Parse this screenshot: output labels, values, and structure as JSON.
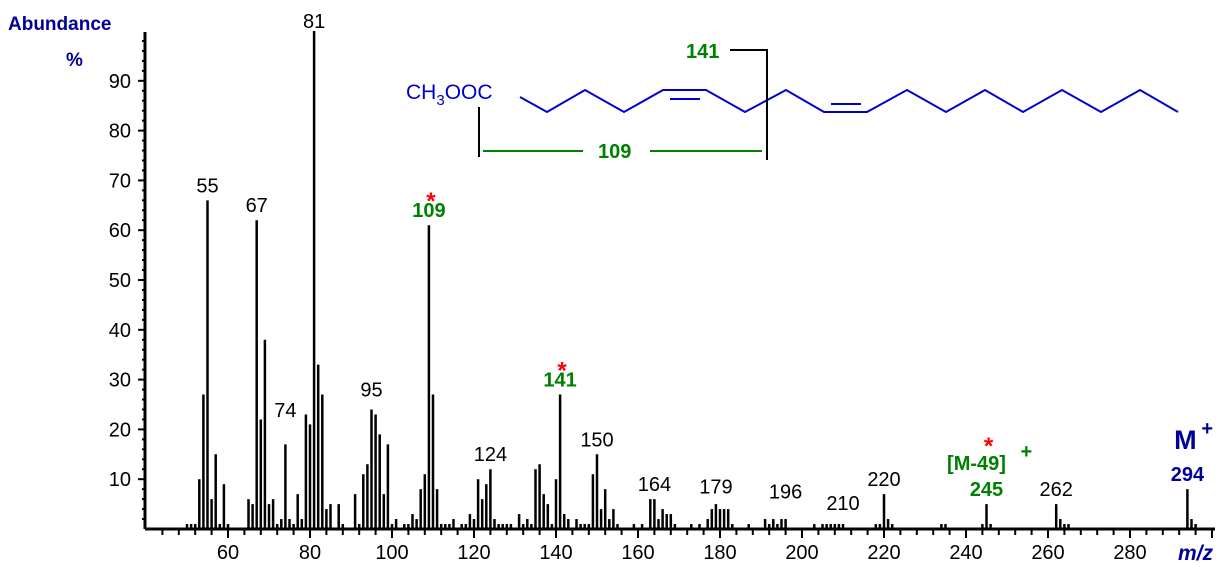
{
  "chart_data": {
    "type": "bar",
    "title": "",
    "xlabel": "m/z",
    "ylabel": "Abundance %",
    "xlim": [
      40,
      300
    ],
    "ylim": [
      0,
      100
    ],
    "x_ticks": [
      60,
      80,
      100,
      120,
      140,
      160,
      180,
      200,
      220,
      240,
      260,
      280
    ],
    "y_ticks": [
      10,
      20,
      30,
      40,
      50,
      60,
      70,
      80,
      90
    ],
    "grid": false,
    "peaks": [
      [
        50,
        1
      ],
      [
        51,
        1
      ],
      [
        52,
        1
      ],
      [
        53,
        10
      ],
      [
        54,
        27
      ],
      [
        55,
        66
      ],
      [
        56,
        6
      ],
      [
        57,
        15
      ],
      [
        58,
        1
      ],
      [
        59,
        9
      ],
      [
        60,
        1
      ],
      [
        65,
        6
      ],
      [
        66,
        5
      ],
      [
        67,
        62
      ],
      [
        68,
        22
      ],
      [
        69,
        38
      ],
      [
        70,
        5
      ],
      [
        71,
        6
      ],
      [
        72,
        1
      ],
      [
        73,
        2
      ],
      [
        74,
        17
      ],
      [
        75,
        2
      ],
      [
        76,
        1
      ],
      [
        77,
        7
      ],
      [
        78,
        2
      ],
      [
        79,
        23
      ],
      [
        80,
        21
      ],
      [
        81,
        100
      ],
      [
        82,
        33
      ],
      [
        83,
        27
      ],
      [
        84,
        4
      ],
      [
        85,
        5
      ],
      [
        87,
        5
      ],
      [
        88,
        1
      ],
      [
        91,
        7
      ],
      [
        92,
        1
      ],
      [
        93,
        11
      ],
      [
        94,
        13
      ],
      [
        95,
        24
      ],
      [
        96,
        23
      ],
      [
        97,
        19
      ],
      [
        98,
        7
      ],
      [
        99,
        17
      ],
      [
        100,
        1
      ],
      [
        101,
        2
      ],
      [
        103,
        1
      ],
      [
        104,
        1
      ],
      [
        105,
        3
      ],
      [
        106,
        2
      ],
      [
        107,
        8
      ],
      [
        108,
        11
      ],
      [
        109,
        61
      ],
      [
        110,
        27
      ],
      [
        111,
        8
      ],
      [
        112,
        1
      ],
      [
        113,
        1
      ],
      [
        114,
        1
      ],
      [
        115,
        2
      ],
      [
        117,
        1
      ],
      [
        118,
        1
      ],
      [
        119,
        3
      ],
      [
        120,
        2
      ],
      [
        121,
        10
      ],
      [
        122,
        6
      ],
      [
        123,
        9
      ],
      [
        124,
        12
      ],
      [
        125,
        2
      ],
      [
        126,
        1
      ],
      [
        127,
        1
      ],
      [
        128,
        1
      ],
      [
        129,
        1
      ],
      [
        131,
        3
      ],
      [
        132,
        1
      ],
      [
        133,
        2
      ],
      [
        134,
        1
      ],
      [
        135,
        12
      ],
      [
        136,
        13
      ],
      [
        137,
        7
      ],
      [
        138,
        5
      ],
      [
        139,
        1
      ],
      [
        140,
        10
      ],
      [
        141,
        27
      ],
      [
        142,
        3
      ],
      [
        143,
        2
      ],
      [
        145,
        2
      ],
      [
        146,
        1
      ],
      [
        147,
        1
      ],
      [
        148,
        1
      ],
      [
        149,
        11
      ],
      [
        150,
        15
      ],
      [
        151,
        4
      ],
      [
        152,
        8
      ],
      [
        153,
        2
      ],
      [
        154,
        4
      ],
      [
        155,
        1
      ],
      [
        159,
        1
      ],
      [
        161,
        1
      ],
      [
        163,
        6
      ],
      [
        164,
        6
      ],
      [
        165,
        2
      ],
      [
        166,
        4
      ],
      [
        167,
        3
      ],
      [
        168,
        3
      ],
      [
        169,
        1
      ],
      [
        173,
        1
      ],
      [
        175,
        1
      ],
      [
        177,
        2
      ],
      [
        178,
        4
      ],
      [
        179,
        5
      ],
      [
        180,
        4
      ],
      [
        181,
        4
      ],
      [
        182,
        4
      ],
      [
        183,
        1
      ],
      [
        187,
        1
      ],
      [
        191,
        2
      ],
      [
        192,
        1
      ],
      [
        193,
        2
      ],
      [
        194,
        1
      ],
      [
        195,
        2
      ],
      [
        196,
        2
      ],
      [
        203,
        1
      ],
      [
        205,
        1
      ],
      [
        206,
        1
      ],
      [
        207,
        1
      ],
      [
        208,
        1
      ],
      [
        209,
        1
      ],
      [
        210,
        1
      ],
      [
        218,
        1
      ],
      [
        219,
        1
      ],
      [
        220,
        7
      ],
      [
        221,
        2
      ],
      [
        222,
        1
      ],
      [
        234,
        1
      ],
      [
        235,
        1
      ],
      [
        244,
        1
      ],
      [
        245,
        5
      ],
      [
        246,
        1
      ],
      [
        262,
        5
      ],
      [
        263,
        2
      ],
      [
        264,
        1
      ],
      [
        265,
        1
      ],
      [
        294,
        8
      ],
      [
        295,
        2
      ],
      [
        296,
        1
      ]
    ],
    "annotations": [
      {
        "mz": 55,
        "label": "55",
        "style": "normal"
      },
      {
        "mz": 67,
        "label": "67",
        "style": "normal"
      },
      {
        "mz": 74,
        "label": "74",
        "style": "normal"
      },
      {
        "mz": 81,
        "label": "81",
        "style": "normal"
      },
      {
        "mz": 95,
        "label": "95",
        "style": "normal"
      },
      {
        "mz": 109,
        "label": "109",
        "style": "green",
        "star": true
      },
      {
        "mz": 124,
        "label": "124",
        "style": "normal"
      },
      {
        "mz": 141,
        "label": "141",
        "style": "green",
        "star": true
      },
      {
        "mz": 150,
        "label": "150",
        "style": "normal"
      },
      {
        "mz": 164,
        "label": "164",
        "style": "normal"
      },
      {
        "mz": 179,
        "label": "179",
        "style": "normal"
      },
      {
        "mz": 196,
        "label": "196",
        "style": "normal"
      },
      {
        "mz": 210,
        "label": "210",
        "style": "normal"
      },
      {
        "mz": 220,
        "label": "220",
        "style": "normal"
      },
      {
        "mz": 245,
        "label": "245",
        "style": "green",
        "star": true,
        "extra": "[M-49]+"
      },
      {
        "mz": 262,
        "label": "262",
        "style": "normal"
      },
      {
        "mz": 294,
        "label": "294",
        "style": "blue",
        "extra": "M+"
      }
    ]
  },
  "axis": {
    "ylabel_line1": "Abundance",
    "ylabel_line2": "%",
    "xlabel": "m/z"
  },
  "structure": {
    "formula_prefix": "CH",
    "formula_sub": "3",
    "formula_suffix": "OOC",
    "fragment_141": "141",
    "fragment_109": "109"
  },
  "colors": {
    "axis": "#000000",
    "label_blue": "#000099",
    "fragment_green": "#008000",
    "structure_blue": "#0000cc",
    "star_red": "#ff0000"
  }
}
